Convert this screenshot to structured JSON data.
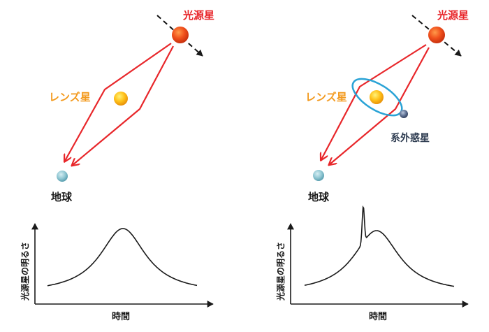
{
  "panels": [
    {
      "source_label": "光源星",
      "lens_label": "レンズ星",
      "earth_label": "地球",
      "planet_label": "",
      "ylabel": "光源星の明るさ",
      "xlabel": "時間",
      "has_planet": false
    },
    {
      "source_label": "光源星",
      "lens_label": "レンズ星",
      "earth_label": "地球",
      "planet_label": "系外惑星",
      "ylabel": "光源星の明るさ",
      "xlabel": "時間",
      "has_planet": true
    }
  ],
  "colors": {
    "ray": "#e8262a",
    "source_label": "#e8262a",
    "lens_label": "#f39a1e",
    "planet_ring": "#2aa3d6"
  }
}
